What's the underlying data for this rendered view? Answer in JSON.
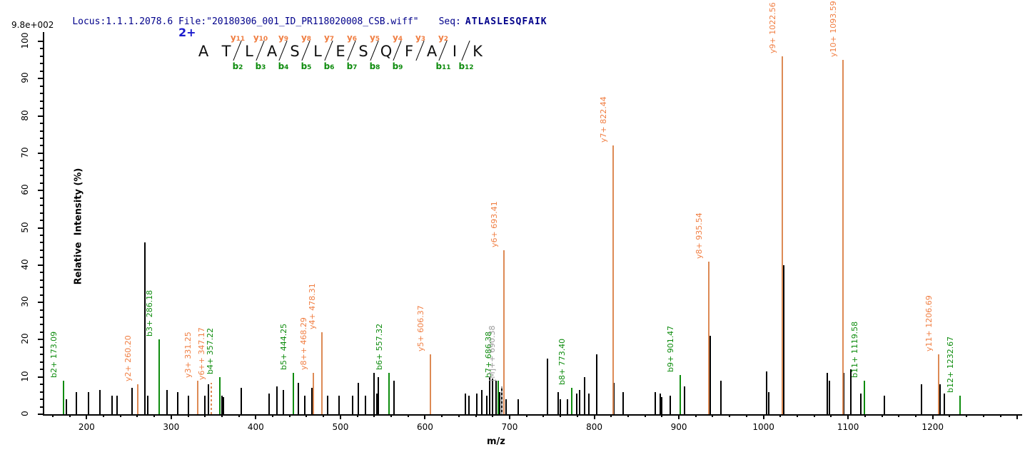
{
  "header": {
    "locus_file": "Locus:1.1.1.2078.6 File:\"20180306_001_ID_PR118020008_CSB.wiff\"",
    "seq_label": "Seq:",
    "sequence": "ATLASLESQFAIK"
  },
  "scale_label": "9.8e+002",
  "charge_label": "2+",
  "colors": {
    "header_text": "#00008B",
    "charge_blue": "#1A1ACD",
    "b_ion": "#0E8C0E",
    "y_ion_label": "#F07E42",
    "y_ion_peak": "#DD8A55",
    "precursor_gray": "#999999",
    "peak_black": "#000000"
  },
  "sequence_diagram": {
    "residues": [
      "A",
      "T",
      "L",
      "A",
      "S",
      "L",
      "E",
      "S",
      "Q",
      "F",
      "A",
      "I",
      "K"
    ],
    "gaps": [
      {
        "y": null,
        "b": null
      },
      {
        "y": "y11",
        "b": "b2"
      },
      {
        "y": "y10",
        "b": "b3"
      },
      {
        "y": "y9",
        "b": "b4"
      },
      {
        "y": "y8",
        "b": "b5"
      },
      {
        "y": "y7",
        "b": "b6"
      },
      {
        "y": "y6",
        "b": "b7"
      },
      {
        "y": "y5",
        "b": "b8"
      },
      {
        "y": "y4",
        "b": "b9"
      },
      {
        "y": "y3",
        "b": null
      },
      {
        "y": "y2",
        "b": "b11"
      },
      {
        "y": null,
        "b": "b12"
      }
    ]
  },
  "chart_data": {
    "type": "bar",
    "subtype": "mass-spectrum",
    "title": "",
    "xlabel": "m/z",
    "ylabel": "Relative  Intensity (%)",
    "xlim": [
      150,
      1304
    ],
    "ylim": [
      0,
      100
    ],
    "x_major_tick_step": 100,
    "x_minor_tick_step": 20,
    "x_labeled_ticks": [
      200,
      300,
      400,
      500,
      600,
      700,
      800,
      900,
      1000,
      1100,
      1200
    ],
    "y_major_tick_step": 10,
    "y_minor_tick_step": 2,
    "y_labeled_ticks": [
      0,
      10,
      20,
      30,
      40,
      50,
      60,
      70,
      80,
      90,
      100
    ],
    "labeled_peaks": [
      {
        "label": "b2+ 173.09",
        "mz": 173.09,
        "pct": 9,
        "ion": "b"
      },
      {
        "label": "y2+ 260.20",
        "mz": 260.2,
        "pct": 8,
        "ion": "y"
      },
      {
        "label": "b3+ 286.18",
        "mz": 286.18,
        "pct": 20,
        "ion": "b"
      },
      {
        "label": "y3+ 331.25",
        "mz": 331.25,
        "pct": 9,
        "ion": "y"
      },
      {
        "label": "y6++ 347.17",
        "mz": 347.17,
        "pct": 8.5,
        "ion": "y",
        "dashed": true
      },
      {
        "label": "b4+ 357.22",
        "mz": 357.22,
        "pct": 10,
        "ion": "b"
      },
      {
        "label": "b5+ 444.25",
        "mz": 444.25,
        "pct": 11,
        "ion": "b"
      },
      {
        "label": "y8++ 468.29",
        "mz": 468.29,
        "pct": 11,
        "ion": "y"
      },
      {
        "label": "y4+ 478.31",
        "mz": 478.31,
        "pct": 22,
        "ion": "y"
      },
      {
        "label": "b6+ 557.32",
        "mz": 557.32,
        "pct": 11,
        "ion": "b"
      },
      {
        "label": "y5+ 606.37",
        "mz": 606.37,
        "pct": 16,
        "ion": "y"
      },
      {
        "label": "b7+ 686.38",
        "mz": 686.38,
        "pct": 9,
        "ion": "b"
      },
      {
        "label": "[M]++ 690.38",
        "mz": 690.38,
        "pct": 8,
        "ion": "precursor",
        "dashed": true
      },
      {
        "label": "y6+ 693.41",
        "mz": 693.41,
        "pct": 44,
        "ion": "y"
      },
      {
        "label": "b8+ 773.40",
        "mz": 773.4,
        "pct": 7,
        "ion": "b"
      },
      {
        "label": "y7+ 822.44",
        "mz": 822.44,
        "pct": 72,
        "ion": "y"
      },
      {
        "label": "b9+ 901.47",
        "mz": 901.47,
        "pct": 10.5,
        "ion": "b"
      },
      {
        "label": "y8+ 935.54",
        "mz": 935.54,
        "pct": 41,
        "ion": "y"
      },
      {
        "label": "y9+ 1022.56",
        "mz": 1022.56,
        "pct": 96,
        "ion": "y"
      },
      {
        "label": "y10+ 1093.59",
        "mz": 1093.59,
        "pct": 95,
        "ion": "y"
      },
      {
        "label": "b11+ 1119.58",
        "mz": 1119.58,
        "pct": 9,
        "ion": "b"
      },
      {
        "label": "y11+ 1206.69",
        "mz": 1206.69,
        "pct": 16,
        "ion": "y"
      },
      {
        "label": "b12+ 1232.67",
        "mz": 1232.67,
        "pct": 5,
        "ion": "b"
      }
    ],
    "unlabeled_peaks": [
      [
        176,
        4
      ],
      [
        188,
        6
      ],
      [
        202,
        6
      ],
      [
        216,
        6.5
      ],
      [
        230,
        5
      ],
      [
        236,
        5
      ],
      [
        254,
        7
      ],
      [
        269,
        46
      ],
      [
        272,
        5
      ],
      [
        295,
        6.5
      ],
      [
        308,
        6
      ],
      [
        320,
        5
      ],
      [
        340,
        5
      ],
      [
        344,
        8
      ],
      [
        360,
        5
      ],
      [
        362,
        4.5
      ],
      [
        383,
        7
      ],
      [
        416,
        5.5
      ],
      [
        425,
        7.5
      ],
      [
        433,
        6.5
      ],
      [
        450,
        8.5
      ],
      [
        458,
        5
      ],
      [
        466,
        7
      ],
      [
        485,
        5
      ],
      [
        498,
        5
      ],
      [
        514,
        5
      ],
      [
        521,
        8.5
      ],
      [
        530,
        5
      ],
      [
        540,
        11
      ],
      [
        543,
        5.5
      ],
      [
        545,
        10
      ],
      [
        563,
        9
      ],
      [
        648,
        5.5
      ],
      [
        652,
        5
      ],
      [
        661,
        5.5
      ],
      [
        667,
        6.5
      ],
      [
        673,
        5
      ],
      [
        676,
        10
      ],
      [
        680,
        9.5
      ],
      [
        684,
        9
      ],
      [
        688,
        6
      ],
      [
        691,
        7
      ],
      [
        696,
        4
      ],
      [
        710,
        4
      ],
      [
        745,
        15
      ],
      [
        757,
        6
      ],
      [
        760,
        4
      ],
      [
        768,
        4
      ],
      [
        779,
        5.5
      ],
      [
        783,
        6.5
      ],
      [
        789,
        10
      ],
      [
        794,
        5.5
      ],
      [
        803,
        16
      ],
      [
        823,
        8.5
      ],
      [
        834,
        6
      ],
      [
        872,
        6
      ],
      [
        878,
        5.5
      ],
      [
        880,
        4.5
      ],
      [
        890,
        5
      ],
      [
        907,
        7.5
      ],
      [
        937,
        21
      ],
      [
        950,
        9
      ],
      [
        1004,
        11.5
      ],
      [
        1006,
        6
      ],
      [
        1024,
        40
      ],
      [
        1075,
        11
      ],
      [
        1078,
        9
      ],
      [
        1095,
        11
      ],
      [
        1103,
        12
      ],
      [
        1115,
        5.5
      ],
      [
        1143,
        5
      ],
      [
        1187,
        8
      ],
      [
        1207,
        8.5
      ],
      [
        1209,
        8
      ],
      [
        1214,
        5.5
      ]
    ]
  }
}
